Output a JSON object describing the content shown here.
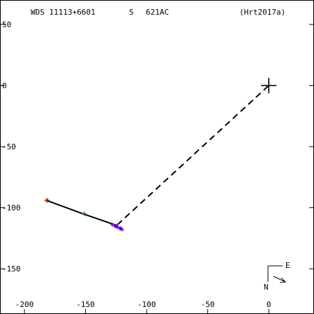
{
  "header": {
    "wds": "WDS 11113+6601",
    "component": "S",
    "discoverer": "621AC",
    "reference": "(Hrt2017a)"
  },
  "compass": {
    "east": "E",
    "north": "N"
  },
  "chart_data": {
    "type": "scatter",
    "title": "",
    "xlabel": "",
    "ylabel": "",
    "xlim": [
      -220,
      37
    ],
    "ylim": [
      -187,
      70
    ],
    "x_ticks": [
      -200,
      -150,
      -100,
      -50,
      0
    ],
    "x_tick_labels": [
      "-200",
      "-150",
      "-100",
      "-50",
      "0"
    ],
    "y_ticks": [
      50,
      0,
      -50,
      -100,
      -150
    ],
    "y_tick_labels": [
      "50",
      "0",
      "-50",
      "-100",
      "-150"
    ],
    "grid": false,
    "primary": {
      "x": 0,
      "y": 0
    },
    "predicted_path": [
      [
        -182,
        -94
      ],
      [
        -152,
        -105
      ],
      [
        -126,
        -114
      ],
      [
        -120,
        -118
      ]
    ],
    "series": [
      {
        "marker": "plus",
        "color": "#008000",
        "points": [
          [
            -181,
            -94
          ],
          [
            -151,
            -105
          ]
        ]
      },
      {
        "marker": "plus",
        "color": "#d00000",
        "points": [
          [
            -182,
            -94
          ]
        ]
      },
      {
        "marker": "plus",
        "color": "#cc00cc",
        "points": [
          [
            -128,
            -114
          ],
          [
            -126,
            -115
          ],
          [
            -124,
            -116
          ],
          [
            -122,
            -117
          ],
          [
            -120,
            -118
          ]
        ]
      },
      {
        "marker": "plus",
        "color": "#0000ff",
        "points": [
          [
            -125,
            -115
          ],
          [
            -121,
            -117
          ]
        ]
      }
    ],
    "connector": {
      "from": [
        -124,
        -114
      ],
      "to": [
        0,
        0
      ]
    },
    "styles": {
      "path": "#000000",
      "connector": "#000000"
    }
  }
}
